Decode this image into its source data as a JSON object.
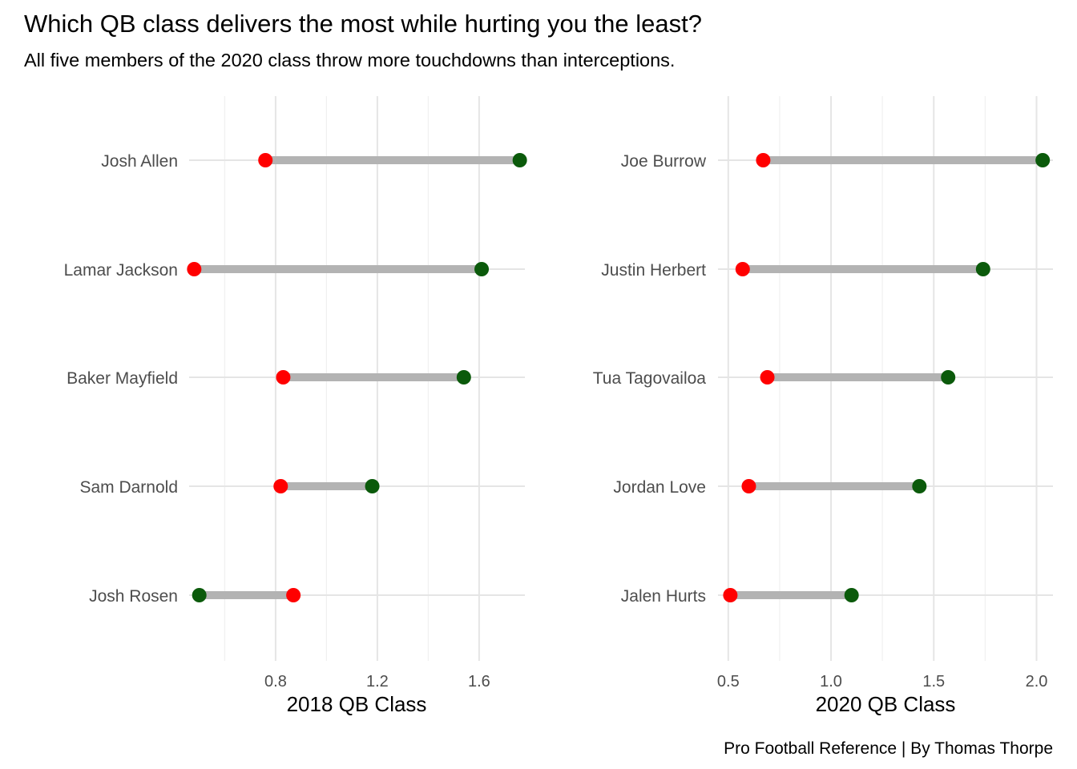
{
  "title": "Which QB class delivers the most while hurting you the least?",
  "subtitle": "All five members of the 2020 class throw more touchdowns than interceptions.",
  "caption": "Pro Football Reference | By Thomas Thorpe",
  "colors": {
    "td": "#0b5a0b",
    "int": "#ff0000",
    "segment": "#b3b3b3",
    "grid_major": "#e5e5e5",
    "grid_minor": "#f0f0f0"
  },
  "chart_data": [
    {
      "type": "dumbbell",
      "xlabel": "2018 QB Class",
      "xlim": [
        0.46,
        1.78
      ],
      "xticks": [
        0.8,
        1.2,
        1.6
      ],
      "xtick_labels": [
        "0.8",
        "1.2",
        "1.6"
      ],
      "minor_ticks": [
        0.6,
        1.0,
        1.4
      ],
      "grid": true,
      "categories": [
        "Josh Allen",
        "Lamar Jackson",
        "Baker Mayfield",
        "Sam Darnold",
        "Josh Rosen"
      ],
      "td_values": [
        1.76,
        1.61,
        1.54,
        1.18,
        0.5
      ],
      "int_values": [
        0.76,
        0.48,
        0.83,
        0.82,
        0.87
      ]
    },
    {
      "type": "dumbbell",
      "xlabel": "2020 QB Class",
      "xlim": [
        0.45,
        2.08
      ],
      "xticks": [
        0.5,
        1.0,
        1.5,
        2.0
      ],
      "xtick_labels": [
        "0.5",
        "1.0",
        "1.5",
        "2.0"
      ],
      "minor_ticks": [
        0.75,
        1.25,
        1.75
      ],
      "grid": true,
      "categories": [
        "Joe Burrow",
        "Justin Herbert",
        "Tua Tagovailoa",
        "Jordan Love",
        "Jalen Hurts"
      ],
      "td_values": [
        2.03,
        1.74,
        1.57,
        1.43,
        1.1
      ],
      "int_values": [
        0.67,
        0.57,
        0.69,
        0.6,
        0.51
      ]
    }
  ]
}
